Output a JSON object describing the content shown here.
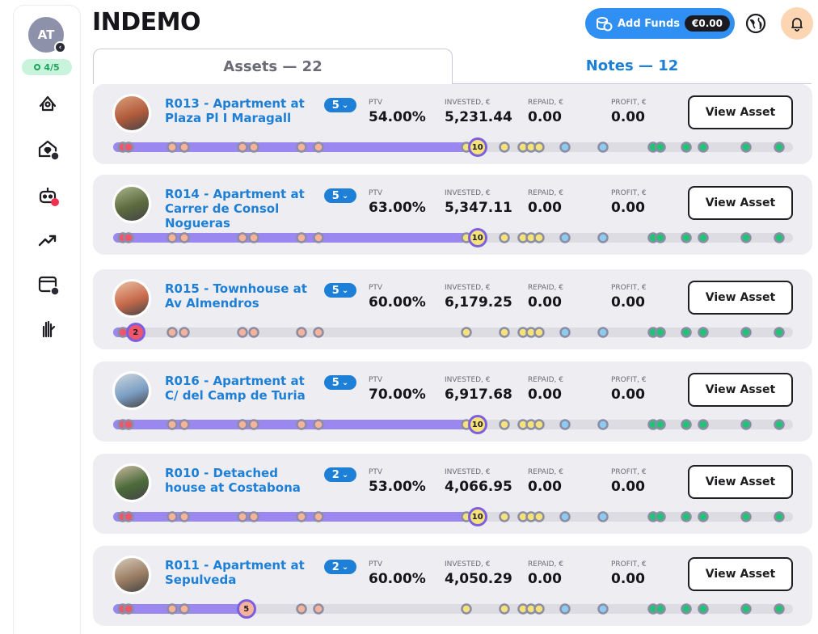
{
  "sidebar": {
    "avatar_initials": "AT",
    "progress": "4/5",
    "icons": [
      "map-pin-home-icon",
      "favorite-home-icon",
      "robot-icon",
      "trending-up-icon",
      "wallet-icon",
      "hands-icon"
    ]
  },
  "header": {
    "logo": "INDEMO",
    "add_funds_label": "Add Funds",
    "balance": "€0.00"
  },
  "tabs": {
    "assets": "Assets — 22",
    "notes": "Notes — 12"
  },
  "labels": {
    "ptv": "PTV",
    "invested": "INVESTED, €",
    "repaid": "REPAID, €",
    "profit": "PROFIT, €",
    "view_asset": "View Asset"
  },
  "assets": [
    {
      "title": "R013 - Apartment at Plaza Pl I Maragall",
      "notes": "5",
      "ptv": "54.00%",
      "invested": "5,231.44",
      "repaid": "0.00",
      "profit": "0.00",
      "progress_label": "10",
      "progress_fraction": 0.53,
      "marker_type": "yellow"
    },
    {
      "title": "R014 - Apartment at Carrer de Consol Nogueras",
      "notes": "5",
      "ptv": "63.00%",
      "invested": "5,347.11",
      "repaid": "0.00",
      "profit": "0.00",
      "progress_label": "10",
      "progress_fraction": 0.53,
      "marker_type": "yellow"
    },
    {
      "title": "R015 - Townhouse at Av Almendros",
      "notes": "5",
      "ptv": "60.00%",
      "invested": "6,179.25",
      "repaid": "0.00",
      "profit": "0.00",
      "progress_label": "2",
      "progress_fraction": 0.027,
      "marker_type": "red"
    },
    {
      "title": "R016 - Apartment at C/ del Camp de Turia",
      "notes": "5",
      "ptv": "70.00%",
      "invested": "6,917.68",
      "repaid": "0.00",
      "profit": "0.00",
      "progress_label": "10",
      "progress_fraction": 0.53,
      "marker_type": "yellow"
    },
    {
      "title": "R010 - Detached house at Costabona",
      "notes": "2",
      "ptv": "53.00%",
      "invested": "4,066.95",
      "repaid": "0.00",
      "profit": "0.00",
      "progress_label": "10",
      "progress_fraction": 0.53,
      "marker_type": "yellow"
    },
    {
      "title": "R011 - Apartment at Sepulveda",
      "notes": "2",
      "ptv": "60.00%",
      "invested": "4,050.29",
      "repaid": "0.00",
      "profit": "0.00",
      "progress_label": "5",
      "progress_fraction": 0.19,
      "marker_type": "salmon"
    }
  ],
  "colors": {
    "accent": "#1d7fd6",
    "progress": "#9b87f0",
    "red": "#f0566b",
    "salmon": "#f6b29a",
    "yellow": "#f6e27a",
    "blue": "#8ecbf0",
    "green": "#21c477",
    "ring": "#8a8da3"
  }
}
